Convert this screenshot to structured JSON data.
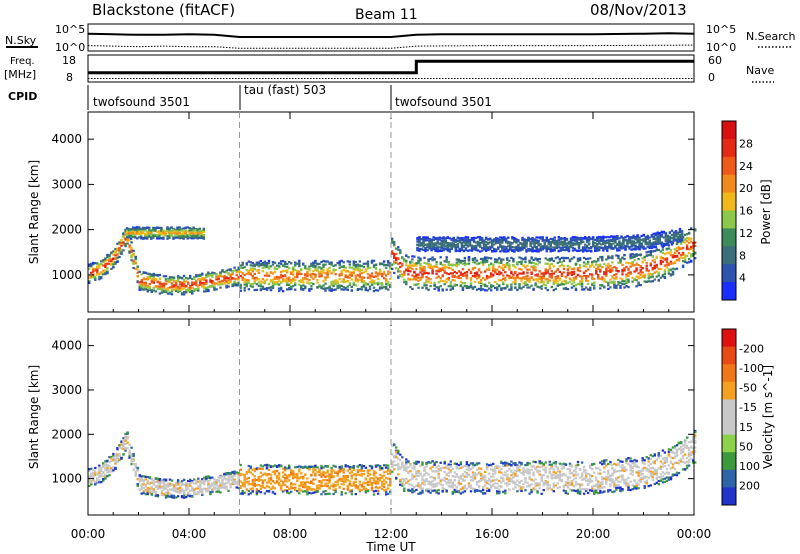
{
  "header": {
    "station": "Blackstone (fitACF)",
    "beam": "Beam 11",
    "date": "08/Nov/2013"
  },
  "params": {
    "nsky_label": "N.Sky",
    "nsearch_label": "N.Search",
    "freq_label": "Freq.",
    "freq_unit": "[MHz]",
    "nave_label": "Nave",
    "cpid_label": "CPID",
    "log_top": "10^5",
    "log_bottom": "10^0",
    "freq_ticks": [
      "18",
      "8"
    ],
    "nave_ticks": [
      "60",
      "0"
    ]
  },
  "chart_data": [
    {
      "type": "line",
      "name": "noise-panel",
      "series": [
        {
          "name": "N.Sky",
          "x": [
            0,
            1,
            2,
            3,
            4,
            5,
            6,
            7,
            8,
            9,
            10,
            11,
            12,
            13,
            14,
            16,
            18,
            20,
            22,
            23,
            24
          ],
          "y": [
            3.2,
            3.1,
            3.0,
            3.0,
            3.1,
            3.0,
            2.6,
            2.6,
            2.6,
            2.6,
            2.6,
            2.6,
            2.6,
            3.0,
            3.1,
            3.1,
            3.1,
            3.1,
            3.2,
            3.3,
            3.2
          ]
        },
        {
          "name": "N.Search",
          "x": [
            0,
            1,
            2,
            3,
            4,
            5,
            6,
            8,
            10,
            12,
            13,
            16,
            20,
            24
          ],
          "y": [
            1.0,
            0.9,
            0.8,
            0.9,
            0.8,
            0.8,
            0.5,
            0.5,
            0.5,
            0.5,
            0.9,
            1.0,
            1.0,
            1.1
          ]
        }
      ],
      "ylim": [
        0,
        5
      ]
    },
    {
      "type": "line",
      "name": "freq-nave-panel",
      "series": [
        {
          "name": "Freq.",
          "x": [
            0,
            13,
            13,
            24
          ],
          "y": [
            10.5,
            10.5,
            16.0,
            16.0
          ]
        },
        {
          "name": "Nave",
          "x": [
            0,
            24
          ],
          "y": [
            8,
            8
          ]
        }
      ],
      "freq_ticks": [
        8,
        18
      ],
      "nave_ticks": [
        0,
        60
      ]
    },
    {
      "type": "table",
      "name": "cpid",
      "segments": [
        {
          "label": "twofsound 3501",
          "start": 0,
          "end": 6
        },
        {
          "label": "tau (fast) 503",
          "start": 6,
          "end": 12
        },
        {
          "label": "twofsound 3501",
          "start": 12,
          "end": 24
        }
      ]
    },
    {
      "type": "heatmap",
      "name": "power",
      "ylabel": "Slant Range [km]",
      "xlim": [
        0,
        24
      ],
      "ylim": [
        180,
        4600
      ],
      "yticks": [
        1000,
        2000,
        3000,
        4000
      ],
      "colorbar": {
        "label": "Power [dB]",
        "ticks": [
          4,
          8,
          12,
          16,
          20,
          24,
          28
        ],
        "colors": [
          "#1a2fff",
          "#2c53b0",
          "#3a6e78",
          "#3d8a5a",
          "#8cc84a",
          "#f0b81c",
          "#f08a1c",
          "#ee5a1a",
          "#e42a14",
          "#d81010"
        ]
      },
      "echo_bands": [
        {
          "x": [
            0,
            0.5,
            1.0,
            1.5,
            2.0,
            3.0,
            4.0,
            5.0,
            6.0
          ],
          "center": [
            1050,
            1150,
            1400,
            1900,
            900,
            800,
            800,
            900,
            1000
          ],
          "width": 260,
          "level": 28
        },
        {
          "x": [
            1.5,
            2.0,
            3.0,
            4.0,
            4.6
          ],
          "center": [
            1950,
            1950,
            1950,
            1950,
            1950
          ],
          "width": 160,
          "level": 20
        },
        {
          "x": [
            6.0,
            7.0,
            8.0,
            9.0,
            10.0,
            11.0,
            12.0
          ],
          "center": [
            1000,
            1000,
            1000,
            1000,
            1000,
            1000,
            1000
          ],
          "width": 420,
          "level": 24
        },
        {
          "x": [
            12.0,
            12.5,
            13.0,
            14.0,
            16.0,
            18.0,
            20.0,
            22.0,
            23.0,
            24.0
          ],
          "center": [
            1500,
            1100,
            1050,
            1050,
            1050,
            1050,
            1050,
            1150,
            1350,
            1750
          ],
          "width": 460,
          "level": 28
        },
        {
          "x": [
            13.0,
            16.0,
            20.0,
            22.0,
            23.5
          ],
          "center": [
            1700,
            1700,
            1700,
            1750,
            1900
          ],
          "width": 200,
          "level": 8
        }
      ]
    },
    {
      "type": "heatmap",
      "name": "velocity",
      "ylabel": "Slant Range [km]",
      "xlabel": "Time UT",
      "xlim": [
        0,
        24
      ],
      "ylim": [
        180,
        4600
      ],
      "yticks": [
        1000,
        2000,
        3000,
        4000
      ],
      "xticks": [
        "00:00",
        "04:00",
        "08:00",
        "12:00",
        "16:00",
        "20:00",
        "00:00"
      ],
      "colorbar": {
        "label": "Velocity [m s^-1]",
        "ticks": [
          "200",
          "100",
          "50",
          "15",
          "-15",
          "-50",
          "-100",
          "-200"
        ],
        "colors": [
          "#2233cc",
          "#2e64a8",
          "#3c9a3c",
          "#8cd24a",
          "#c8c8c8",
          "#c8c8c8",
          "#f4a020",
          "#f07818",
          "#e84a14",
          "#e01010"
        ]
      },
      "echo_bands": [
        {
          "x": [
            0,
            0.5,
            1.0,
            1.5,
            2.0,
            3.0,
            4.0,
            5.0,
            6.0
          ],
          "center": [
            1050,
            1150,
            1400,
            1900,
            900,
            800,
            800,
            900,
            1000
          ],
          "width": 260,
          "level": -15
        },
        {
          "x": [
            6.0,
            7.0,
            8.0,
            9.0,
            10.0,
            11.0,
            12.0
          ],
          "center": [
            1000,
            1000,
            1000,
            1000,
            1000,
            1000,
            1000
          ],
          "width": 420,
          "level": -50
        },
        {
          "x": [
            12.0,
            12.5,
            13.0,
            14.0,
            16.0,
            18.0,
            20.0,
            22.0,
            23.0,
            24.0
          ],
          "center": [
            1500,
            1100,
            1050,
            1050,
            1050,
            1050,
            1050,
            1150,
            1350,
            1750
          ],
          "width": 460,
          "level": -15
        }
      ]
    }
  ]
}
